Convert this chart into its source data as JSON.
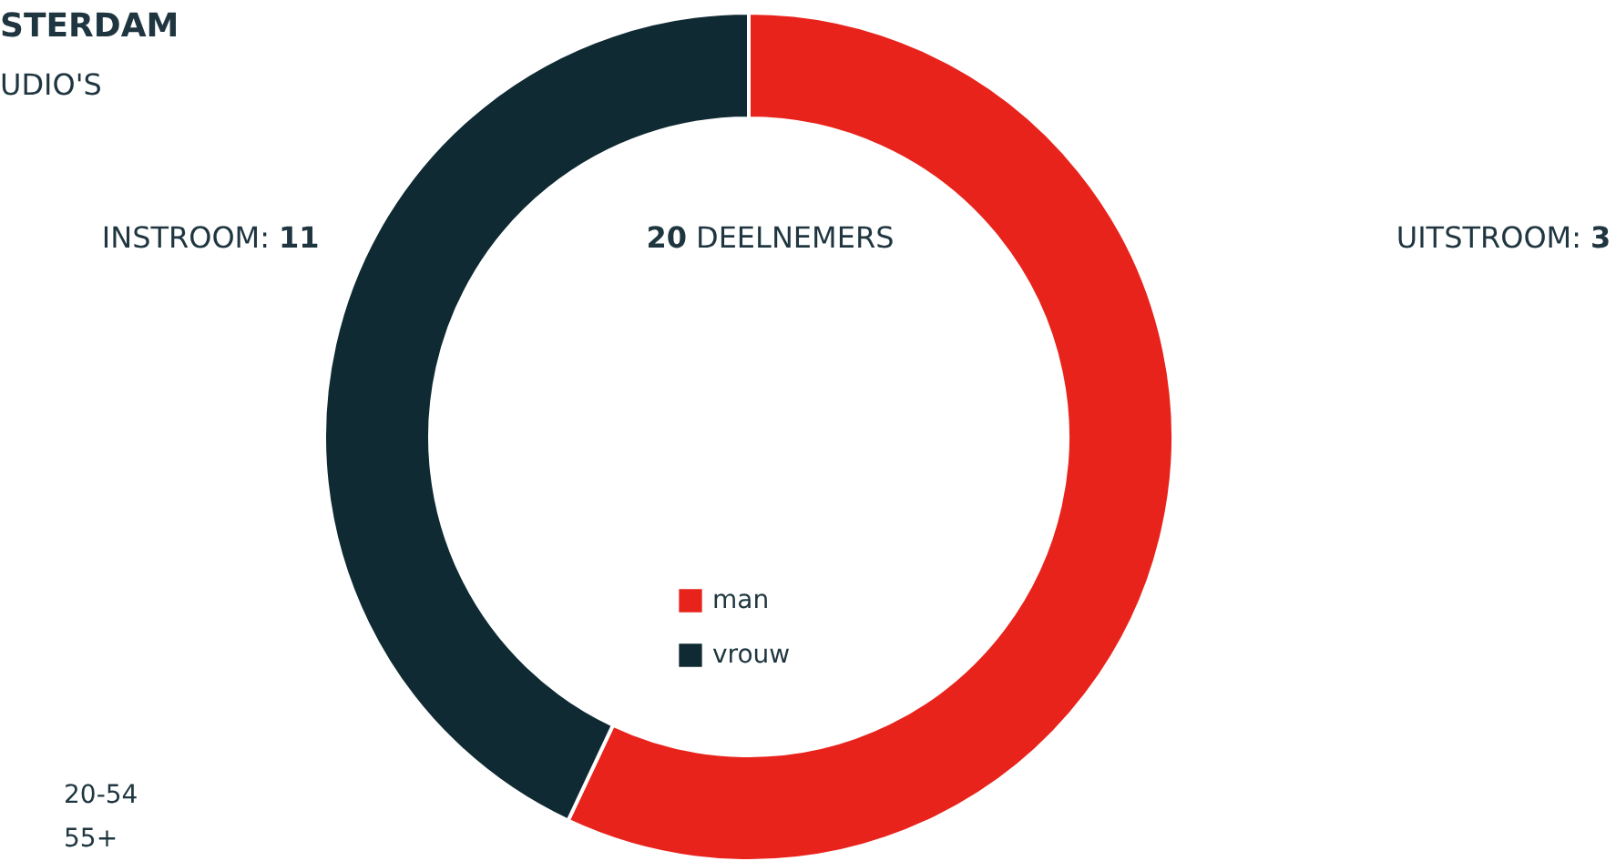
{
  "chart_data": {
    "type": "donut",
    "title": "STERDAM",
    "subtitle": "UDIO'S",
    "categories": [
      "man",
      "vrouw"
    ],
    "values": [
      57,
      43
    ],
    "colors": [
      "#e8231c",
      "#0f2a33"
    ],
    "legend": "bottom",
    "annotations": [
      "INSTROOM: 11",
      "20 DEELNEMERS",
      "UITSTROOM: 3",
      "20-54",
      "55+"
    ]
  }
}
